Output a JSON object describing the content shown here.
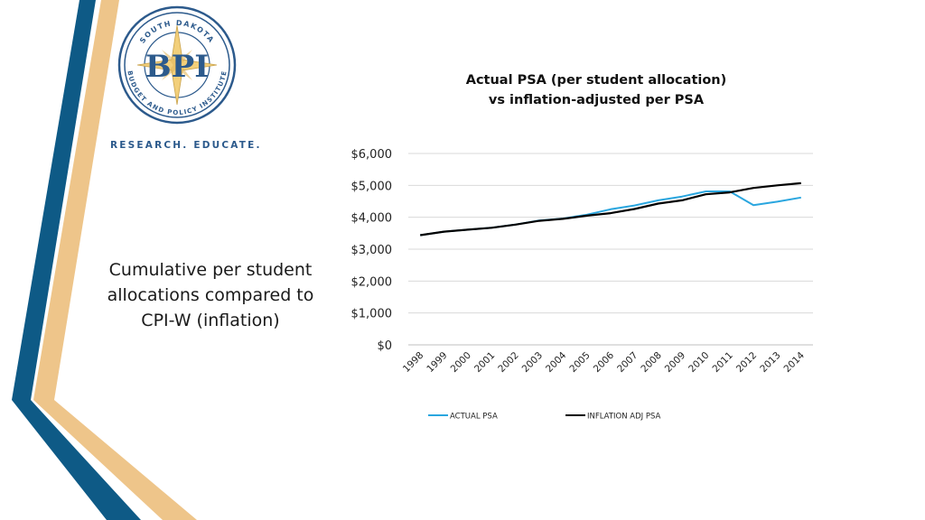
{
  "logo": {
    "top_text": "SOUTH DAKOTA",
    "bottom_text": "BUDGET AND POLICY INSTITUTE",
    "initials": "BPI"
  },
  "tagline": "RESEARCH. EDUCATE.",
  "side_text": "Cumulative per student allocations compared to CPI-W (inflation)",
  "colors": {
    "navy": "#0e5a86",
    "tan": "#eec58a",
    "actual": "#2aa6df",
    "inflation": "#000000"
  },
  "chart_data": {
    "type": "line",
    "title_line1": "Actual  PSA (per student allocation)",
    "title_line2": "vs inflation-adjusted per PSA",
    "categories": [
      "1998",
      "1999",
      "2000",
      "2001",
      "2002",
      "2003",
      "2004",
      "2005",
      "2006",
      "2007",
      "2008",
      "2009",
      "2010",
      "2011",
      "2012",
      "2013",
      "2014"
    ],
    "series": [
      {
        "name": "ACTUAL PSA",
        "color": "#2aa6df",
        "values": [
          3440,
          3550,
          3610,
          3670,
          3770,
          3900,
          3960,
          4080,
          4250,
          4370,
          4530,
          4650,
          4810,
          4810,
          4380,
          4490,
          4620
        ]
      },
      {
        "name": "INFLATION ADJ PSA",
        "color": "#000000",
        "values": [
          3440,
          3550,
          3610,
          3670,
          3770,
          3890,
          3950,
          4050,
          4130,
          4260,
          4430,
          4530,
          4720,
          4780,
          4920,
          5000,
          5070
        ]
      }
    ],
    "y_ticks": [
      "$0",
      "$1,000",
      "$2,000",
      "$3,000",
      "$4,000",
      "$5,000",
      "$6,000"
    ],
    "ylim": [
      0,
      6000
    ],
    "grid": true,
    "legend_position": "bottom"
  }
}
